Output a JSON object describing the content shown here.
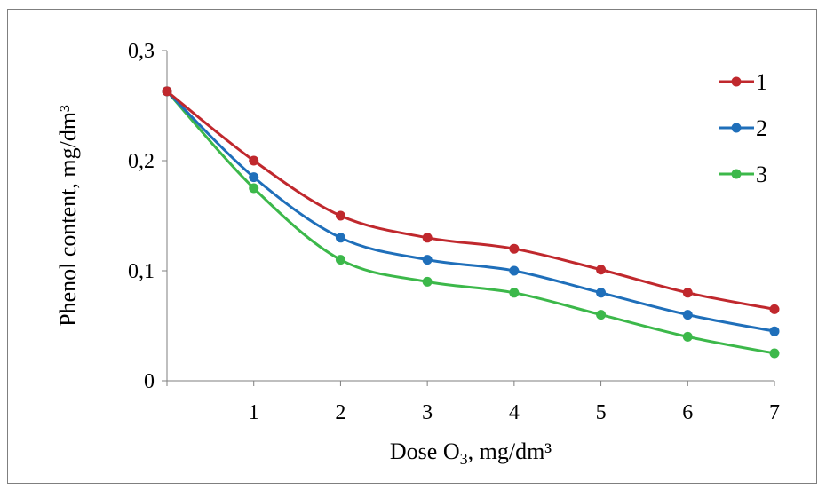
{
  "chart_data": {
    "type": "line",
    "x": [
      0,
      1,
      2,
      3,
      4,
      5,
      6,
      7
    ],
    "x_tick_labels": [
      "1",
      "2",
      "3",
      "4",
      "5",
      "6",
      "7"
    ],
    "y_tick_labels": [
      "0",
      "0,1",
      "0,2",
      "0,3"
    ],
    "xlim": [
      0,
      7
    ],
    "ylim": [
      0,
      0.3
    ],
    "y_ticks": [
      0,
      0.1,
      0.2,
      0.3
    ],
    "xlabel": "Dose O3, mg/dm³",
    "xlabel_base": "Dose O",
    "xlabel_sub": "3",
    "xlabel_tail": ", mg/dm³",
    "ylabel": "Phenol content, mg/dm³",
    "title": "",
    "grid": false,
    "legend_position": "top-right",
    "smooth": true,
    "series": [
      {
        "name": "1",
        "color": "#c0282d",
        "values": [
          0.263,
          0.2,
          0.15,
          0.13,
          0.12,
          0.101,
          0.08,
          0.065
        ]
      },
      {
        "name": "2",
        "color": "#1f6fba",
        "values": [
          0.263,
          0.185,
          0.13,
          0.11,
          0.1,
          0.08,
          0.06,
          0.045
        ]
      },
      {
        "name": "3",
        "color": "#3cb84a",
        "values": [
          0.263,
          0.175,
          0.11,
          0.09,
          0.08,
          0.06,
          0.04,
          0.025
        ]
      }
    ]
  }
}
